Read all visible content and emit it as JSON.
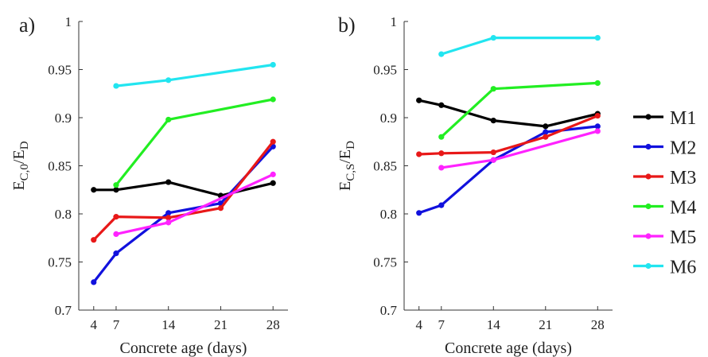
{
  "chart_data": [
    {
      "type": "line",
      "panel_label": "a)",
      "xlabel": "Concrete age (days)",
      "ylabel": "E_C,0/E_D",
      "ylabel_parts": {
        "base1": "E",
        "sub1": "C,0",
        "sep": "/",
        "base2": "E",
        "sub2": "D"
      },
      "x_ticks": [
        4,
        7,
        14,
        21,
        28
      ],
      "y_ticks": [
        "0.7",
        "0.75",
        "0.8",
        "0.85",
        "0.9",
        "0.95",
        "1"
      ],
      "xlim": [
        2,
        30
      ],
      "ylim": [
        0.7,
        1.0
      ],
      "grid": false,
      "series": [
        {
          "name": "M1",
          "color": "#000000",
          "x": [
            4,
            7,
            14,
            21,
            28
          ],
          "y": [
            0.825,
            0.825,
            0.833,
            0.819,
            0.832
          ]
        },
        {
          "name": "M2",
          "color": "#1111dd",
          "x": [
            4,
            7,
            14,
            21,
            28
          ],
          "y": [
            0.729,
            0.759,
            0.801,
            0.811,
            0.87
          ]
        },
        {
          "name": "M3",
          "color": "#e81818",
          "x": [
            4,
            7,
            14,
            21,
            28
          ],
          "y": [
            0.773,
            0.797,
            0.796,
            0.806,
            0.875
          ]
        },
        {
          "name": "M4",
          "color": "#22ee22",
          "x": [
            7,
            14,
            28
          ],
          "y": [
            0.83,
            0.898,
            0.919
          ]
        },
        {
          "name": "M5",
          "color": "#ff22ff",
          "x": [
            7,
            14,
            28
          ],
          "y": [
            0.779,
            0.791,
            0.841
          ]
        },
        {
          "name": "M6",
          "color": "#22e5f0",
          "x": [
            7,
            14,
            28
          ],
          "y": [
            0.933,
            0.939,
            0.955
          ]
        }
      ]
    },
    {
      "type": "line",
      "panel_label": "b)",
      "xlabel": "Concrete age (days)",
      "ylabel": "E_C,S/E_D",
      "ylabel_parts": {
        "base1": "E",
        "sub1": "C,S",
        "sep": "/",
        "base2": "E",
        "sub2": "D"
      },
      "x_ticks": [
        4,
        7,
        14,
        21,
        28
      ],
      "y_ticks": [
        "0.7",
        "0.75",
        "0.8",
        "0.85",
        "0.9",
        "0.95",
        "1"
      ],
      "xlim": [
        2,
        30
      ],
      "ylim": [
        0.7,
        1.0
      ],
      "grid": false,
      "series": [
        {
          "name": "M1",
          "color": "#000000",
          "x": [
            4,
            7,
            14,
            21,
            28
          ],
          "y": [
            0.918,
            0.913,
            0.897,
            0.891,
            0.904
          ]
        },
        {
          "name": "M2",
          "color": "#1111dd",
          "x": [
            4,
            7,
            14,
            21,
            28
          ],
          "y": [
            0.801,
            0.809,
            0.856,
            0.885,
            0.891
          ]
        },
        {
          "name": "M3",
          "color": "#e81818",
          "x": [
            4,
            7,
            14,
            21,
            28
          ],
          "y": [
            0.862,
            0.863,
            0.864,
            0.88,
            0.902
          ]
        },
        {
          "name": "M4",
          "color": "#22ee22",
          "x": [
            7,
            14,
            28
          ],
          "y": [
            0.88,
            0.93,
            0.936
          ]
        },
        {
          "name": "M5",
          "color": "#ff22ff",
          "x": [
            7,
            14,
            28
          ],
          "y": [
            0.848,
            0.856,
            0.886
          ]
        },
        {
          "name": "M6",
          "color": "#22e5f0",
          "x": [
            7,
            14,
            28
          ],
          "y": [
            0.966,
            0.983,
            0.983
          ]
        }
      ]
    }
  ],
  "legend": {
    "placement": "right",
    "items": [
      {
        "label": "M1",
        "color": "#000000"
      },
      {
        "label": "M2",
        "color": "#1111dd"
      },
      {
        "label": "M3",
        "color": "#e81818"
      },
      {
        "label": "M4",
        "color": "#22ee22"
      },
      {
        "label": "M5",
        "color": "#ff22ff"
      },
      {
        "label": "M6",
        "color": "#22e5f0"
      }
    ]
  }
}
